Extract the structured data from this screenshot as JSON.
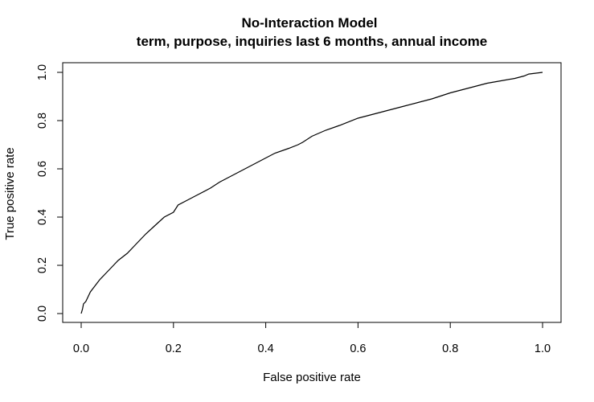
{
  "chart_data": {
    "type": "line",
    "title": "No-Interaction Model",
    "subtitle": "term, purpose, inquiries last 6 months, annual income",
    "xlabel": "False positive rate",
    "ylabel": "True positive rate",
    "xlim": [
      0,
      1
    ],
    "ylim": [
      0,
      1
    ],
    "x_ticks": [
      "0.0",
      "0.2",
      "0.4",
      "0.6",
      "0.8",
      "1.0"
    ],
    "y_ticks": [
      "0.0",
      "0.2",
      "0.4",
      "0.6",
      "0.8",
      "1.0"
    ],
    "grid": false,
    "line_color": "#000000",
    "series": [
      {
        "x": [
          0.0,
          0.003,
          0.005,
          0.01,
          0.015,
          0.02,
          0.03,
          0.04,
          0.05,
          0.06,
          0.07,
          0.08,
          0.09,
          0.1,
          0.12,
          0.14,
          0.16,
          0.18,
          0.2,
          0.21,
          0.23,
          0.25,
          0.28,
          0.3,
          0.33,
          0.36,
          0.38,
          0.4,
          0.42,
          0.45,
          0.47,
          0.48,
          0.5,
          0.53,
          0.56,
          0.6,
          0.62,
          0.65,
          0.68,
          0.7,
          0.73,
          0.76,
          0.8,
          0.82,
          0.85,
          0.88,
          0.91,
          0.94,
          0.96,
          0.97,
          1.0
        ],
        "y": [
          0.0,
          0.02,
          0.04,
          0.05,
          0.07,
          0.09,
          0.115,
          0.14,
          0.16,
          0.18,
          0.2,
          0.22,
          0.235,
          0.25,
          0.29,
          0.33,
          0.365,
          0.4,
          0.42,
          0.45,
          0.47,
          0.49,
          0.52,
          0.545,
          0.575,
          0.605,
          0.625,
          0.645,
          0.665,
          0.685,
          0.7,
          0.71,
          0.735,
          0.76,
          0.78,
          0.81,
          0.82,
          0.835,
          0.85,
          0.86,
          0.875,
          0.89,
          0.915,
          0.925,
          0.94,
          0.955,
          0.965,
          0.975,
          0.985,
          0.993,
          1.0
        ]
      }
    ]
  }
}
